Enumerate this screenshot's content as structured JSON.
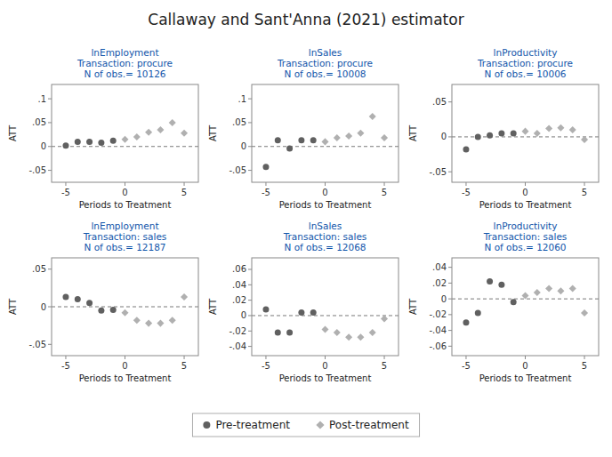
{
  "title": "Callaway and Sant'Anna (2021) estimator",
  "chart_data": [
    {
      "type": "scatter",
      "title": "lnEmployment\nTransaction: procure\nN of obs.= 10126",
      "xlabel": "Periods to Treatment",
      "ylabel": "ATT",
      "xlim": [
        -6.2,
        6.2
      ],
      "xticks": [
        -5,
        0,
        5
      ],
      "ylim": [
        -0.075,
        0.13
      ],
      "yticks": [
        {
          "value": -0.05,
          "label": "-.05"
        },
        0,
        {
          "value": 0.05,
          "label": ".05"
        },
        {
          "value": 0.1,
          "label": ".1"
        }
      ],
      "grid": false,
      "legend": "bottom",
      "series": [
        {
          "name": "Pre-treatment",
          "color": "#606060",
          "marker": "circle",
          "x": [
            -5,
            -4,
            -3,
            -2,
            -1
          ],
          "values": [
            0.002,
            0.01,
            0.01,
            0.008,
            0.012
          ]
        },
        {
          "name": "Post-treatment",
          "color": "#b0b0b0",
          "marker": "diamond",
          "x": [
            0,
            1,
            2,
            3,
            4,
            5
          ],
          "values": [
            0.015,
            0.02,
            0.03,
            0.035,
            0.05,
            0.028
          ]
        }
      ]
    },
    {
      "type": "scatter",
      "title": "lnSales\nTransaction: procure\nN of obs.= 10008",
      "xlabel": "Periods to Treatment",
      "ylabel": "ATT",
      "xlim": [
        -6.2,
        6.2
      ],
      "xticks": [
        -5,
        0,
        5
      ],
      "ylim": [
        -0.075,
        0.13
      ],
      "yticks": [
        {
          "value": -0.05,
          "label": "-.05"
        },
        0,
        {
          "value": 0.05,
          "label": ".05"
        },
        {
          "value": 0.1,
          "label": ".1"
        }
      ],
      "grid": false,
      "series": [
        {
          "name": "Pre-treatment",
          "color": "#606060",
          "marker": "circle",
          "x": [
            -5,
            -4,
            -3,
            -2,
            -1
          ],
          "values": [
            -0.043,
            0.013,
            -0.004,
            0.013,
            0.013
          ]
        },
        {
          "name": "Post-treatment",
          "color": "#b0b0b0",
          "marker": "diamond",
          "x": [
            0,
            1,
            2,
            3,
            4,
            5
          ],
          "values": [
            0.01,
            0.018,
            0.022,
            0.028,
            0.063,
            0.018
          ]
        }
      ]
    },
    {
      "type": "scatter",
      "title": "lnProductivity\nTransaction: procure\nN of obs.= 10006",
      "xlabel": "Periods to Treatment",
      "ylabel": "ATT",
      "xlim": [
        -6.2,
        6.2
      ],
      "xticks": [
        -5,
        0,
        5
      ],
      "ylim": [
        -0.065,
        0.075
      ],
      "yticks": [
        {
          "value": -0.05,
          "label": "-.05"
        },
        0,
        {
          "value": 0.05,
          "label": ".05"
        }
      ],
      "grid": false,
      "series": [
        {
          "name": "Pre-treatment",
          "color": "#606060",
          "marker": "circle",
          "x": [
            -5,
            -4,
            -3,
            -2,
            -1
          ],
          "values": [
            -0.018,
            0.0,
            0.002,
            0.005,
            0.005
          ]
        },
        {
          "name": "Post-treatment",
          "color": "#b0b0b0",
          "marker": "diamond",
          "x": [
            0,
            1,
            2,
            3,
            4,
            5
          ],
          "values": [
            0.008,
            0.005,
            0.012,
            0.013,
            0.01,
            -0.004
          ]
        }
      ]
    },
    {
      "type": "scatter",
      "title": "lnEmployment\nTransaction: sales\nN of obs.= 12187",
      "xlabel": "Periods to Treatment",
      "ylabel": "ATT",
      "xlim": [
        -6.2,
        6.2
      ],
      "xticks": [
        -5,
        0,
        5
      ],
      "ylim": [
        -0.065,
        0.065
      ],
      "yticks": [
        {
          "value": -0.05,
          "label": "-.05"
        },
        0,
        {
          "value": 0.05,
          "label": ".05"
        }
      ],
      "grid": false,
      "series": [
        {
          "name": "Pre-treatment",
          "color": "#606060",
          "marker": "circle",
          "x": [
            -5,
            -4,
            -3,
            -2,
            -1
          ],
          "values": [
            0.013,
            0.01,
            0.005,
            -0.005,
            -0.004
          ]
        },
        {
          "name": "Post-treatment",
          "color": "#b0b0b0",
          "marker": "diamond",
          "x": [
            0,
            1,
            2,
            3,
            4,
            5
          ],
          "values": [
            -0.008,
            -0.018,
            -0.022,
            -0.022,
            -0.018,
            0.013
          ]
        }
      ]
    },
    {
      "type": "scatter",
      "title": "lnSales\nTransaction: sales\nN of obs.= 12068",
      "xlabel": "Periods to Treatment",
      "ylabel": "ATT",
      "xlim": [
        -6.2,
        6.2
      ],
      "xticks": [
        -5,
        0,
        5
      ],
      "ylim": [
        -0.052,
        0.075
      ],
      "yticks": [
        {
          "value": -0.04,
          "label": "-.04"
        },
        {
          "value": -0.02,
          "label": "-.02"
        },
        0,
        {
          "value": 0.02,
          "label": ".02"
        },
        {
          "value": 0.04,
          "label": ".04"
        },
        {
          "value": 0.06,
          "label": ".06"
        }
      ],
      "grid": false,
      "series": [
        {
          "name": "Pre-treatment",
          "color": "#606060",
          "marker": "circle",
          "x": [
            -5,
            -4,
            -3,
            -2,
            -1
          ],
          "values": [
            0.008,
            -0.022,
            -0.022,
            0.004,
            0.004
          ]
        },
        {
          "name": "Post-treatment",
          "color": "#b0b0b0",
          "marker": "diamond",
          "x": [
            0,
            1,
            2,
            3,
            4,
            5
          ],
          "values": [
            -0.018,
            -0.022,
            -0.028,
            -0.028,
            -0.022,
            -0.004
          ]
        }
      ]
    },
    {
      "type": "scatter",
      "title": "lnProductivity\nTransaction: sales\nN of obs.= 12060",
      "xlabel": "Periods to Treatment",
      "ylabel": "ATT",
      "xlim": [
        -6.2,
        6.2
      ],
      "xticks": [
        -5,
        0,
        5
      ],
      "ylim": [
        -0.072,
        0.052
      ],
      "yticks": [
        {
          "value": -0.06,
          "label": "-.06"
        },
        {
          "value": -0.04,
          "label": "-.04"
        },
        {
          "value": -0.02,
          "label": "-.02"
        },
        0,
        {
          "value": 0.02,
          "label": ".02"
        },
        {
          "value": 0.04,
          "label": ".04"
        }
      ],
      "grid": false,
      "series": [
        {
          "name": "Pre-treatment",
          "color": "#606060",
          "marker": "circle",
          "x": [
            -5,
            -4,
            -3,
            -2,
            -1
          ],
          "values": [
            -0.03,
            -0.018,
            0.022,
            0.018,
            -0.004
          ]
        },
        {
          "name": "Post-treatment",
          "color": "#b0b0b0",
          "marker": "diamond",
          "x": [
            0,
            1,
            2,
            3,
            4,
            5
          ],
          "values": [
            0.004,
            0.008,
            0.013,
            0.01,
            0.013,
            -0.018
          ]
        }
      ]
    }
  ]
}
